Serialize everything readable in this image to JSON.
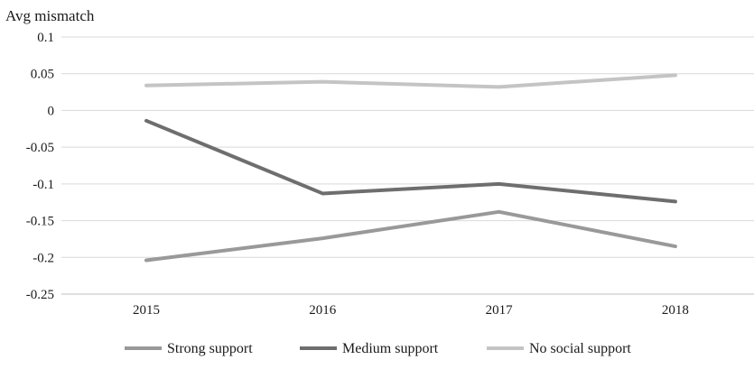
{
  "chart_data": {
    "type": "line",
    "title": "",
    "xlabel": "",
    "ylabel": "Avg mismatch",
    "x": [
      "2015",
      "2016",
      "2017",
      "2018"
    ],
    "ylim": [
      -0.25,
      0.1
    ],
    "yticks": [
      0.1,
      0.05,
      0,
      -0.05,
      -0.1,
      -0.15,
      -0.2,
      -0.25
    ],
    "ytick_labels": [
      "0.1",
      "0.05",
      "0",
      "-0.05",
      "-0.1",
      "-0.15",
      "-0.2",
      "-0.25"
    ],
    "grid": "horizontal",
    "legend_position": "bottom",
    "series": [
      {
        "name": "Strong support",
        "color": "#999999",
        "values": [
          -0.204,
          -0.174,
          -0.138,
          -0.185
        ]
      },
      {
        "name": "Medium support",
        "color": "#6e6e6e",
        "values": [
          -0.014,
          -0.113,
          -0.1,
          -0.124
        ]
      },
      {
        "name": "No social support",
        "color": "#c4c4c4",
        "values": [
          0.034,
          0.039,
          0.032,
          0.048
        ]
      }
    ]
  }
}
